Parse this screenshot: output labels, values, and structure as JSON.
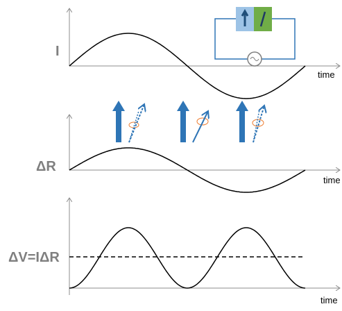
{
  "panels": [
    {
      "label": "I",
      "axis_label": "time"
    },
    {
      "label": "ΔR",
      "axis_label": "time"
    },
    {
      "label": "ΔV=IΔR",
      "axis_label": "time"
    }
  ]
}
